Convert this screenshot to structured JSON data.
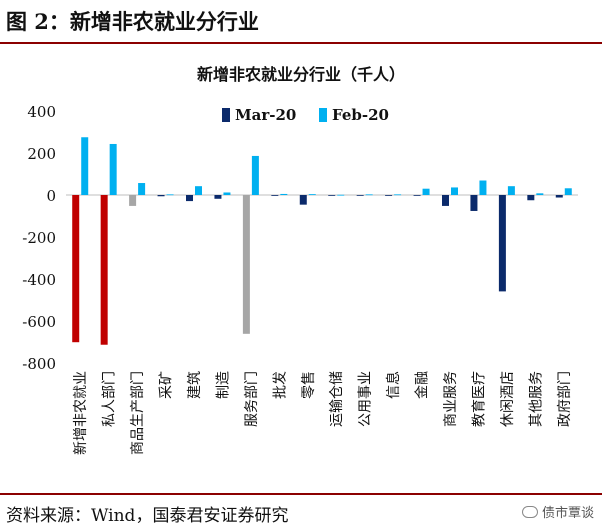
{
  "figure": {
    "title": "图 2：新增非农就业分行业",
    "source": "资料来源：Wind，国泰君安证券研究",
    "watermark": "债市覃谈",
    "watermark_icon": "wechat-icon"
  },
  "chart_data": {
    "type": "bar",
    "title": "新增非农就业分行业（千人）",
    "categories": [
      "新增非农就业",
      "私人部门",
      "商品生产部门",
      "采矿",
      "建筑",
      "制造",
      "服务部门",
      "批发",
      "零售",
      "运输仓储",
      "公用事业",
      "信息",
      "金融",
      "商业服务",
      "教育医疗",
      "休闲酒店",
      "其他服务",
      "政府部门"
    ],
    "series": [
      {
        "name": "Mar-20",
        "color": "#0b2a6b",
        "values": [
          -701,
          -713,
          -52,
          -6,
          -29,
          -18,
          -661,
          -4,
          -46,
          -3,
          -1,
          -4,
          -2,
          -52,
          -76,
          -459,
          -25,
          -12
        ]
      },
      {
        "name": "Feb-20",
        "color": "#00b0f0",
        "values": [
          275,
          243,
          57,
          3,
          42,
          12,
          186,
          5,
          4,
          1,
          3,
          3,
          30,
          36,
          69,
          42,
          8,
          32
        ]
      }
    ],
    "highlight": {
      "新增非农就业": "#c00000",
      "私人部门": "#c00000",
      "服务部门": "#a6a6a6",
      "商品生产部门": "#a6a6a6"
    },
    "ylim": [
      -800,
      400
    ],
    "yticks": [
      400,
      200,
      0,
      -200,
      -400,
      -600,
      -800
    ],
    "legend_position": "top-center",
    "grid": false
  }
}
